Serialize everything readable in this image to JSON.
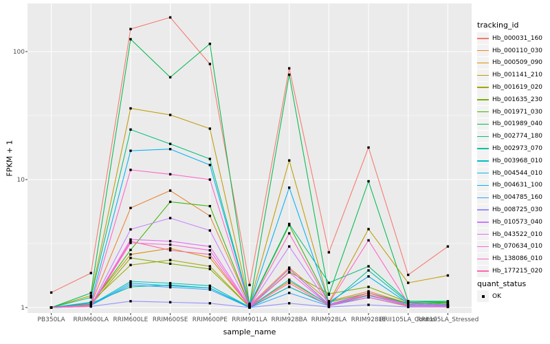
{
  "figure": {
    "background": "#FFFFFF",
    "panel_background": "#EBEBEB",
    "gridline_color": "#FFFFFF",
    "axis_text_color": "#4D4D4D",
    "tick_mark_color": "#333333",
    "point_color": "#000000"
  },
  "chart_data": {
    "type": "line",
    "title": "",
    "xlabel": "sample_name",
    "ylabel": "FPKM + 1",
    "y_scale": "log10",
    "y_ticks": [
      1,
      10,
      100
    ],
    "y_minor_ticks": [
      3.162,
      31.62
    ],
    "ylim": [
      0.9,
      238
    ],
    "grid": "on",
    "legend_position": "right",
    "marker": "small-black-square",
    "categories": [
      "PB350LA",
      "RRIM600LA",
      "RRIM600LE",
      "RRIM600SE",
      "RRIM600PE",
      "RRIM901LA",
      "RRIM928BA",
      "RRIM928LA",
      "RRIM928LE",
      "RRII105LA_Control",
      "RRII105LA_Stressed"
    ],
    "series": [
      {
        "name": "Hb_000031_160",
        "color": "#F8766D",
        "values": [
          1.31,
          1.86,
          150,
          185,
          80,
          1.5,
          74,
          2.7,
          17.8,
          1.8,
          3.0
        ]
      },
      {
        "name": "Hb_000110_030",
        "color": "#EA8331",
        "values": [
          1.0,
          1.06,
          6.0,
          8.2,
          5.2,
          1.04,
          2.05,
          1.12,
          1.34,
          1.08,
          1.04
        ]
      },
      {
        "name": "Hb_000509_090",
        "color": "#D89000",
        "values": [
          1.0,
          1.08,
          2.6,
          2.9,
          2.45,
          1.02,
          1.6,
          1.06,
          1.26,
          1.04,
          1.02
        ]
      },
      {
        "name": "Hb_001141_210",
        "color": "#C09B00",
        "values": [
          1.0,
          1.24,
          36,
          32,
          25,
          1.07,
          14.1,
          1.1,
          4.1,
          1.56,
          1.78
        ]
      },
      {
        "name": "Hb_001619_020",
        "color": "#A3A500",
        "values": [
          1.0,
          1.1,
          2.15,
          2.35,
          2.1,
          1.01,
          1.45,
          1.05,
          1.2,
          1.02,
          1.05
        ]
      },
      {
        "name": "Hb_001635_230",
        "color": "#7CAE00",
        "values": [
          1.0,
          1.05,
          2.44,
          2.2,
          2.0,
          1.01,
          1.9,
          1.28,
          1.45,
          1.1,
          1.08
        ]
      },
      {
        "name": "Hb_001971_030",
        "color": "#39B600",
        "values": [
          1.0,
          1.06,
          2.82,
          6.7,
          6.2,
          1.03,
          4.4,
          1.1,
          1.3,
          1.08,
          1.1
        ]
      },
      {
        "name": "Hb_001989_040",
        "color": "#00BB4E",
        "values": [
          1.0,
          1.3,
          125,
          63,
          115,
          1.05,
          66,
          1.26,
          9.7,
          1.12,
          1.1
        ]
      },
      {
        "name": "Hb_002774_180",
        "color": "#00BF7D",
        "values": [
          1.0,
          1.2,
          24.6,
          19.0,
          14.5,
          1.05,
          4.5,
          1.56,
          2.1,
          1.12,
          1.12
        ]
      },
      {
        "name": "Hb_002973_070",
        "color": "#00C1A3",
        "values": [
          1.0,
          1.08,
          1.45,
          1.5,
          1.42,
          1.01,
          2.0,
          1.06,
          1.95,
          1.1,
          1.06
        ]
      },
      {
        "name": "Hb_003968_010",
        "color": "#00BFC4",
        "values": [
          1.0,
          1.05,
          1.6,
          1.55,
          1.48,
          1.01,
          1.65,
          1.05,
          1.3,
          1.06,
          1.03
        ]
      },
      {
        "name": "Hb_004544_010",
        "color": "#00BAE0",
        "values": [
          1.0,
          1.04,
          1.55,
          1.48,
          1.42,
          1.0,
          1.45,
          1.04,
          1.24,
          1.04,
          1.02
        ]
      },
      {
        "name": "Hb_004631_100",
        "color": "#00B0F6",
        "values": [
          1.0,
          1.1,
          16.8,
          17.3,
          13.0,
          1.04,
          8.65,
          1.1,
          1.75,
          1.08,
          1.04
        ]
      },
      {
        "name": "Hb_004785_160",
        "color": "#35A2FF",
        "values": [
          1.0,
          1.04,
          1.5,
          1.44,
          1.38,
          1.0,
          1.3,
          1.03,
          1.2,
          1.03,
          1.02
        ]
      },
      {
        "name": "Hb_008725_030",
        "color": "#9590FF",
        "values": [
          1.0,
          1.02,
          1.12,
          1.1,
          1.08,
          1.0,
          1.08,
          1.01,
          1.05,
          1.01,
          1.01
        ]
      },
      {
        "name": "Hb_010573_040",
        "color": "#C77CFF",
        "values": [
          1.0,
          1.03,
          4.08,
          5.0,
          4.0,
          1.02,
          3.0,
          1.06,
          1.3,
          1.05,
          1.03
        ]
      },
      {
        "name": "Hb_043522_010",
        "color": "#E76BF3",
        "values": [
          1.0,
          1.03,
          3.4,
          3.3,
          3.0,
          1.02,
          2.0,
          1.05,
          1.25,
          1.04,
          1.02
        ]
      },
      {
        "name": "Hb_070634_010",
        "color": "#FA62DB",
        "values": [
          1.0,
          1.02,
          3.2,
          3.1,
          2.8,
          1.01,
          1.88,
          1.04,
          1.2,
          1.03,
          1.02
        ]
      },
      {
        "name": "Hb_138086_010",
        "color": "#FF61C9",
        "values": [
          1.0,
          1.05,
          11.9,
          11.0,
          10.0,
          1.03,
          3.8,
          1.08,
          3.35,
          1.08,
          1.05
        ]
      },
      {
        "name": "Hb_177215_020",
        "color": "#FF65AC",
        "values": [
          1.0,
          1.02,
          3.3,
          2.8,
          2.6,
          1.01,
          1.55,
          1.03,
          1.3,
          1.03,
          1.02
        ]
      }
    ],
    "legend": {
      "color_title": "tracking_id",
      "shape_title": "quant_status",
      "shape_entries": [
        "OK"
      ]
    }
  }
}
